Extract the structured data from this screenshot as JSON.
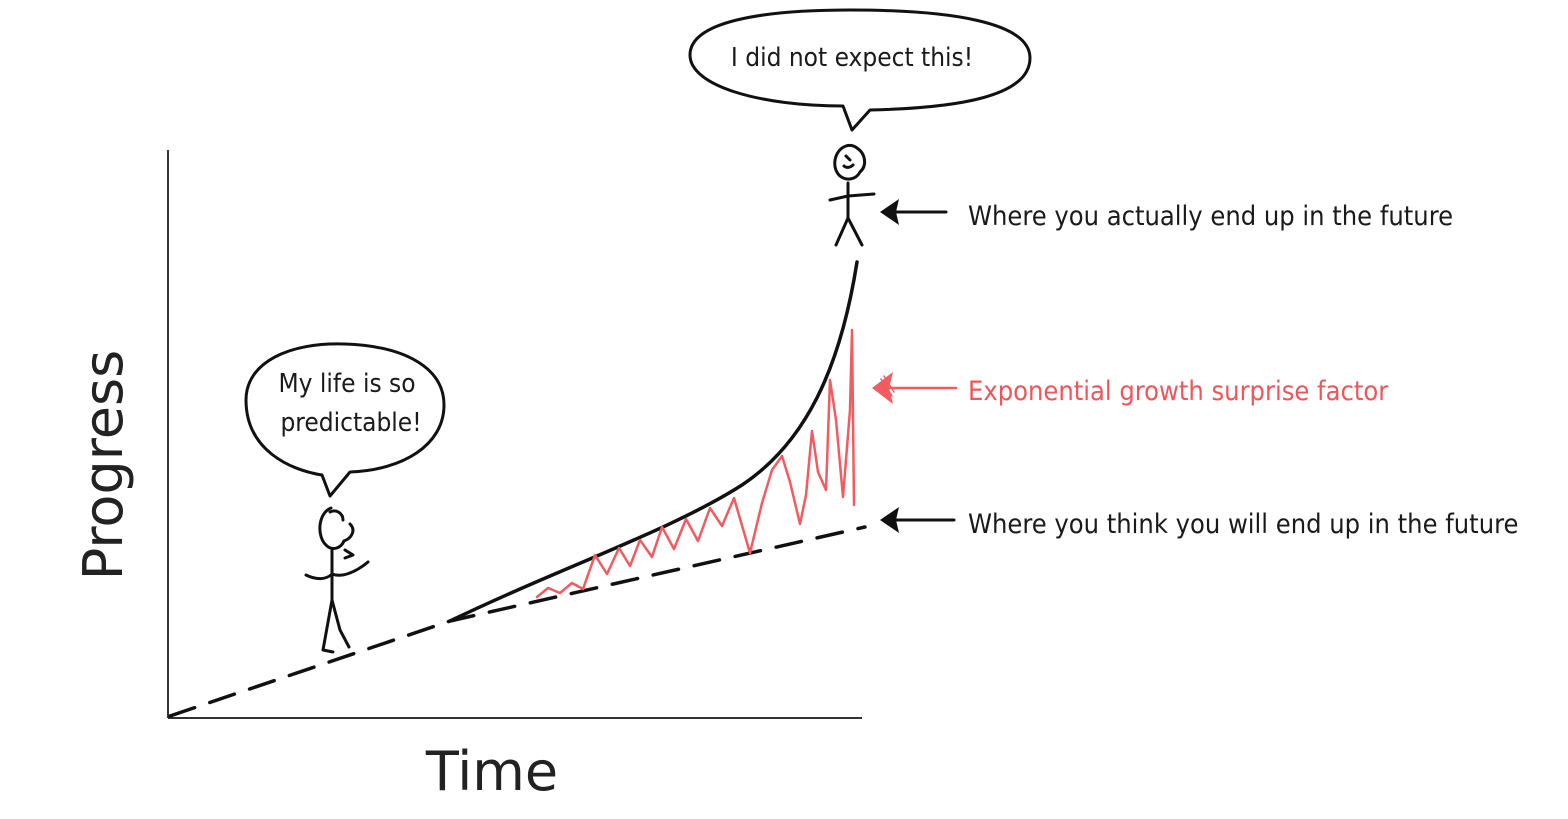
{
  "axes": {
    "x_label": "Time",
    "y_label": "Progress"
  },
  "speech_bubbles": {
    "present_line1": "My life is so",
    "present_line2": "predictable!",
    "future": "I did not expect this!"
  },
  "annotations": {
    "actual": "Where you actually end up in the future",
    "surprise": "Exponential growth surprise factor",
    "expected": "Where you think you will end up in the future"
  },
  "curves": {
    "expected_path": "dashed straight line",
    "actual_path": "exponential curve",
    "gap": "red zigzag"
  },
  "colors": {
    "ink": "#111111",
    "surprise_red": "#f25b60",
    "background": "#ffffff"
  }
}
